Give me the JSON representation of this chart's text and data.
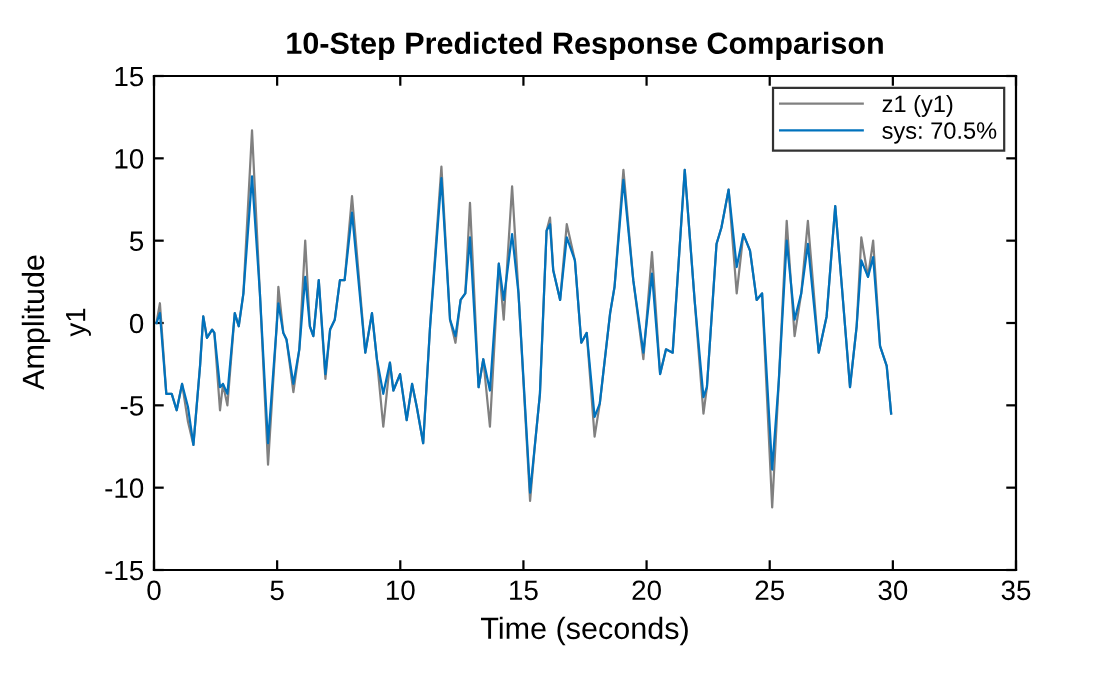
{
  "chart_data": {
    "type": "line",
    "title": "10-Step Predicted Response Comparison",
    "xlabel": "Time (seconds)",
    "ylabel": "Amplitude",
    "annotations": [
      "y1"
    ],
    "x": [
      0.1,
      0.24,
      0.5,
      0.72,
      0.92,
      1.14,
      1.38,
      1.6,
      1.87,
      2.0,
      2.15,
      2.36,
      2.45,
      2.68,
      2.8,
      2.98,
      3.28,
      3.44,
      3.63,
      3.98,
      4.3,
      4.63,
      4.98,
      5.05,
      5.25,
      5.38,
      5.66,
      5.9,
      6.14,
      6.33,
      6.47,
      6.69,
      6.96,
      7.15,
      7.34,
      7.55,
      7.74,
      8.04,
      8.58,
      8.85,
      9.05,
      9.31,
      9.58,
      9.72,
      9.99,
      10.26,
      10.48,
      10.67,
      10.93,
      11.21,
      11.67,
      12.02,
      12.24,
      12.45,
      12.64,
      12.83,
      13.18,
      13.37,
      13.64,
      14.0,
      14.2,
      14.54,
      14.8,
      15.27,
      15.46,
      15.67,
      15.94,
      16.08,
      16.21,
      16.49,
      16.76,
      17.09,
      17.35,
      17.57,
      17.89,
      18.1,
      18.52,
      18.7,
      19.06,
      19.46,
      19.87,
      20.22,
      20.55,
      20.79,
      21.06,
      21.55,
      21.95,
      22.31,
      22.45,
      22.84,
      23.04,
      23.33,
      23.66,
      23.93,
      24.2,
      24.47,
      24.69,
      25.1,
      25.37,
      25.69,
      26.01,
      26.28,
      26.55,
      26.99,
      27.31,
      27.66,
      27.93,
      28.26,
      28.53,
      28.72,
      28.99,
      29.2,
      29.48,
      29.75,
      29.93
    ],
    "series": [
      {
        "name": "z1 (y1)",
        "color": "#808080",
        "values": [
          0,
          1.2,
          -4.3,
          -4.3,
          -5.3,
          -3.7,
          -6.0,
          -7.4,
          -2.6,
          0.4,
          -0.9,
          -0.4,
          -0.6,
          -5.3,
          -3.7,
          -5.0,
          0.6,
          -0.2,
          1.8,
          11.7,
          1.8,
          -8.6,
          -0.2,
          2.2,
          -0.6,
          -1,
          -4.2,
          -1.6,
          5.0,
          -0.2,
          -0.8,
          2.6,
          -3.4,
          -0.4,
          0.2,
          2.6,
          2.6,
          7.7,
          -1.8,
          0.6,
          -2.2,
          -6.3,
          -2.4,
          -4.1,
          -3.1,
          -5.9,
          -3.7,
          -5.1,
          -7.3,
          -0.2,
          9.5,
          0.2,
          -1.2,
          1.4,
          1.8,
          7.3,
          -3.9,
          -2.2,
          -6.3,
          3.6,
          0.2,
          8.3,
          1.8,
          -10.8,
          -7.5,
          -4.3,
          5.6,
          6.4,
          3.2,
          1.4,
          6.0,
          3.8,
          -1.2,
          -0.6,
          -6.9,
          -4.9,
          0.6,
          2.2,
          9.3,
          2.6,
          -2.2,
          4.3,
          -3.1,
          -1.6,
          -1.8,
          9.3,
          1.4,
          -5.5,
          -3.9,
          4.8,
          5.8,
          8.1,
          1.8,
          5.4,
          4.4,
          1.4,
          1.8,
          -11.2,
          -3.5,
          6.2,
          -0.8,
          1.8,
          6.2,
          -1.8,
          0.4,
          7.1,
          2.2,
          -3.9,
          -0.2,
          5.2,
          2.8,
          5.0,
          -1.4,
          -2.6,
          -5.5
        ]
      },
      {
        "name": "sys: 70.5%",
        "color": "#0072bd",
        "values": [
          0,
          0.6,
          -4.3,
          -4.3,
          -5.3,
          -3.7,
          -5.1,
          -7.4,
          -2.6,
          0.4,
          -0.9,
          -0.4,
          -0.6,
          -3.9,
          -3.7,
          -4.3,
          0.6,
          -0.2,
          1.8,
          8.9,
          1.8,
          -7.3,
          -0.2,
          1.2,
          -0.6,
          -1,
          -3.7,
          -1.6,
          2.8,
          -0.2,
          -0.8,
          2.6,
          -3.1,
          -0.4,
          0.2,
          2.6,
          2.6,
          6.7,
          -1.8,
          0.6,
          -2.2,
          -4.3,
          -2.4,
          -4.1,
          -3.1,
          -5.9,
          -3.7,
          -5.1,
          -7.3,
          -0.2,
          8.8,
          0.2,
          -0.8,
          1.4,
          1.8,
          5.2,
          -3.9,
          -2.2,
          -4.1,
          3.6,
          1.4,
          5.4,
          1.8,
          -10.3,
          -7.5,
          -4.3,
          5.6,
          6.0,
          3.2,
          1.4,
          5.2,
          3.8,
          -1.2,
          -0.6,
          -5.7,
          -4.9,
          0.6,
          2.2,
          8.7,
          2.6,
          -1.8,
          3.0,
          -3.1,
          -1.6,
          -1.8,
          9.3,
          1.4,
          -4.5,
          -3.9,
          4.8,
          5.8,
          8.1,
          3.4,
          5.4,
          4.4,
          1.4,
          1.8,
          -8.9,
          -3.5,
          5.0,
          0.2,
          1.8,
          4.8,
          -1.8,
          0.4,
          7.1,
          2.2,
          -3.9,
          -0.2,
          3.8,
          2.8,
          4.0,
          -1.4,
          -2.6,
          -5.5
        ]
      }
    ],
    "xlim": [
      0,
      35
    ],
    "xticks": [
      0,
      5,
      10,
      15,
      20,
      25,
      30,
      35
    ],
    "ylim": [
      -15,
      15
    ],
    "yticks": [
      -15,
      -10,
      -5,
      0,
      5,
      10,
      15
    ],
    "legend": "top right",
    "grid": false
  }
}
